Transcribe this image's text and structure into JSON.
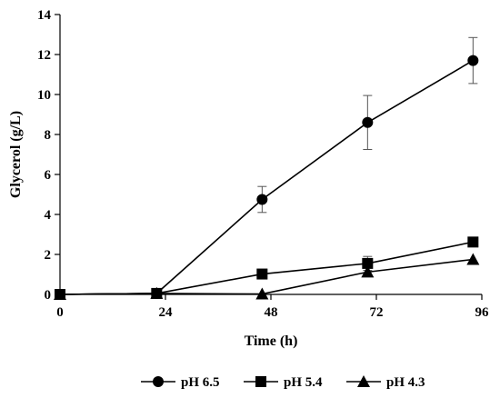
{
  "chart_data": {
    "type": "line",
    "title": "",
    "xlabel": "Time (h)",
    "ylabel": "Glycerol (g/L)",
    "xlim": [
      0,
      96
    ],
    "ylim": [
      0,
      14
    ],
    "xticks": [
      0,
      24,
      48,
      72,
      96
    ],
    "yticks": [
      0,
      2,
      4,
      6,
      8,
      10,
      12,
      14
    ],
    "grid": false,
    "legend_position": "bottom",
    "series": [
      {
        "name": "pH 6.5",
        "marker": "circle",
        "x": [
          0,
          22,
          46,
          70,
          94
        ],
        "y": [
          0,
          0.05,
          4.75,
          8.6,
          11.7
        ],
        "error": [
          0,
          0,
          0.65,
          1.35,
          1.15
        ]
      },
      {
        "name": "pH 5.4",
        "marker": "square",
        "x": [
          0,
          22,
          46,
          70,
          94
        ],
        "y": [
          0,
          0.05,
          1.02,
          1.55,
          2.62
        ],
        "error": [
          0,
          0,
          0,
          0.35,
          0
        ]
      },
      {
        "name": "pH 4.3",
        "marker": "triangle",
        "x": [
          0,
          22,
          46,
          70,
          94
        ],
        "y": [
          0,
          0.05,
          0.02,
          1.12,
          1.75
        ],
        "error": [
          0,
          0,
          0,
          0,
          0
        ]
      }
    ]
  }
}
